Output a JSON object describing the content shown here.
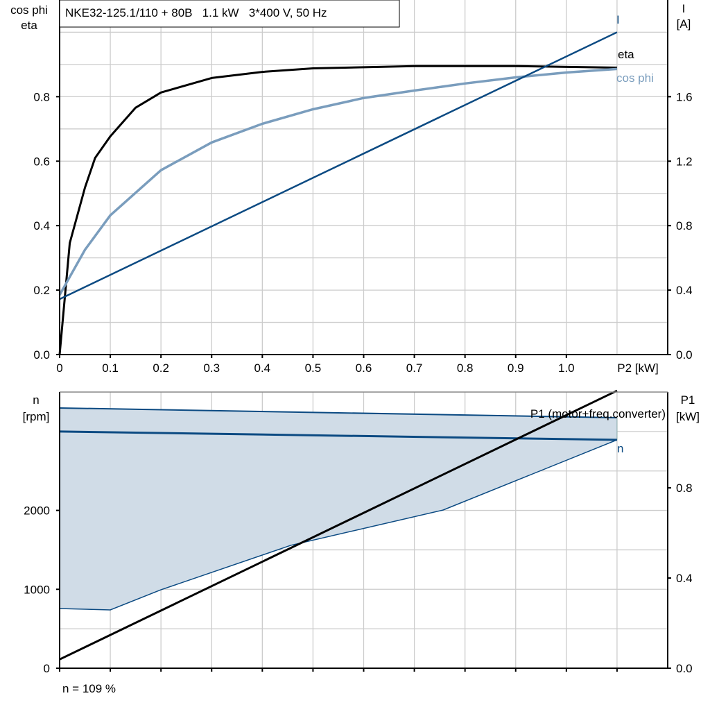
{
  "title": "NKE32-125.1/110 + 80B   1.1 kW   3*400 V, 50 Hz",
  "colors": {
    "eta": "#000000",
    "cosphi": "#7a9dbd",
    "current": "#0b4a82",
    "n": "#0b4a82",
    "band_fill": "#d0dce7",
    "p1": "#000000",
    "grid": "#cccccc"
  },
  "footer": "n = 109 %",
  "chart_data": [
    {
      "type": "line",
      "x_label": "P2 [kW]",
      "x_ticks": [
        "0",
        "0.1",
        "0.2",
        "0.3",
        "0.4",
        "0.5",
        "0.6",
        "0.7",
        "0.8",
        "0.9",
        "1.0"
      ],
      "xlim": [
        0,
        1.2
      ],
      "left_axis": {
        "label_line1": "cos phi",
        "label_line2": "eta",
        "ylim": [
          0,
          1.1
        ],
        "ticks": [
          "0.0",
          "0.2",
          "0.4",
          "0.6",
          "0.8"
        ]
      },
      "right_axis": {
        "label_line1": "I",
        "label_line2": "[A]",
        "ylim": [
          0,
          2.2
        ],
        "ticks": [
          "0.0",
          "0.4",
          "0.8",
          "1.2",
          "1.6"
        ]
      },
      "grid": true,
      "series": [
        {
          "name": "eta",
          "axis": "left",
          "x": [
            0,
            0.02,
            0.05,
            0.07,
            0.1,
            0.15,
            0.2,
            0.3,
            0.4,
            0.5,
            0.7,
            0.9,
            1.1
          ],
          "y": [
            0,
            0.346,
            0.518,
            0.61,
            0.677,
            0.766,
            0.813,
            0.858,
            0.877,
            0.888,
            0.895,
            0.895,
            0.89
          ]
        },
        {
          "name": "cos phi",
          "axis": "left",
          "x": [
            0,
            0.05,
            0.1,
            0.2,
            0.3,
            0.4,
            0.5,
            0.6,
            0.7,
            0.8,
            0.9,
            1.0,
            1.1
          ],
          "y": [
            0.185,
            0.325,
            0.432,
            0.572,
            0.658,
            0.716,
            0.761,
            0.796,
            0.819,
            0.841,
            0.86,
            0.875,
            0.886
          ]
        },
        {
          "name": "I",
          "axis": "right",
          "x": [
            0,
            1.1
          ],
          "y": [
            0.344,
            2.0
          ]
        }
      ]
    },
    {
      "type": "line",
      "xlim": [
        0,
        1.2
      ],
      "left_axis": {
        "label_line1": "n",
        "label_line2": "[rpm]",
        "ylim": [
          0,
          3500
        ],
        "ticks": [
          "0",
          "1000",
          "2000"
        ]
      },
      "right_axis": {
        "label_line1": "P1",
        "label_line2": "[kW]",
        "ylim": [
          0,
          1.225
        ],
        "ticks": [
          "0.0",
          "0.4",
          "0.8"
        ]
      },
      "grid": true,
      "band": {
        "x_upper": [
          0,
          1.1
        ],
        "upper": [
          3298,
          3175
        ],
        "x_lower": [
          0,
          0.1,
          0.2,
          0.456,
          0.757,
          1.1
        ],
        "lower": [
          756,
          739,
          994,
          1557,
          2005,
          2894
        ]
      },
      "series": [
        {
          "name": "n",
          "axis": "left",
          "x": [
            0,
            1.1
          ],
          "y": [
            3000,
            2894
          ]
        },
        {
          "name": "P1 (motor+freq.converter)",
          "axis": "right",
          "x": [
            0,
            1.1
          ],
          "y": [
            0.039,
            1.231
          ]
        }
      ]
    }
  ]
}
